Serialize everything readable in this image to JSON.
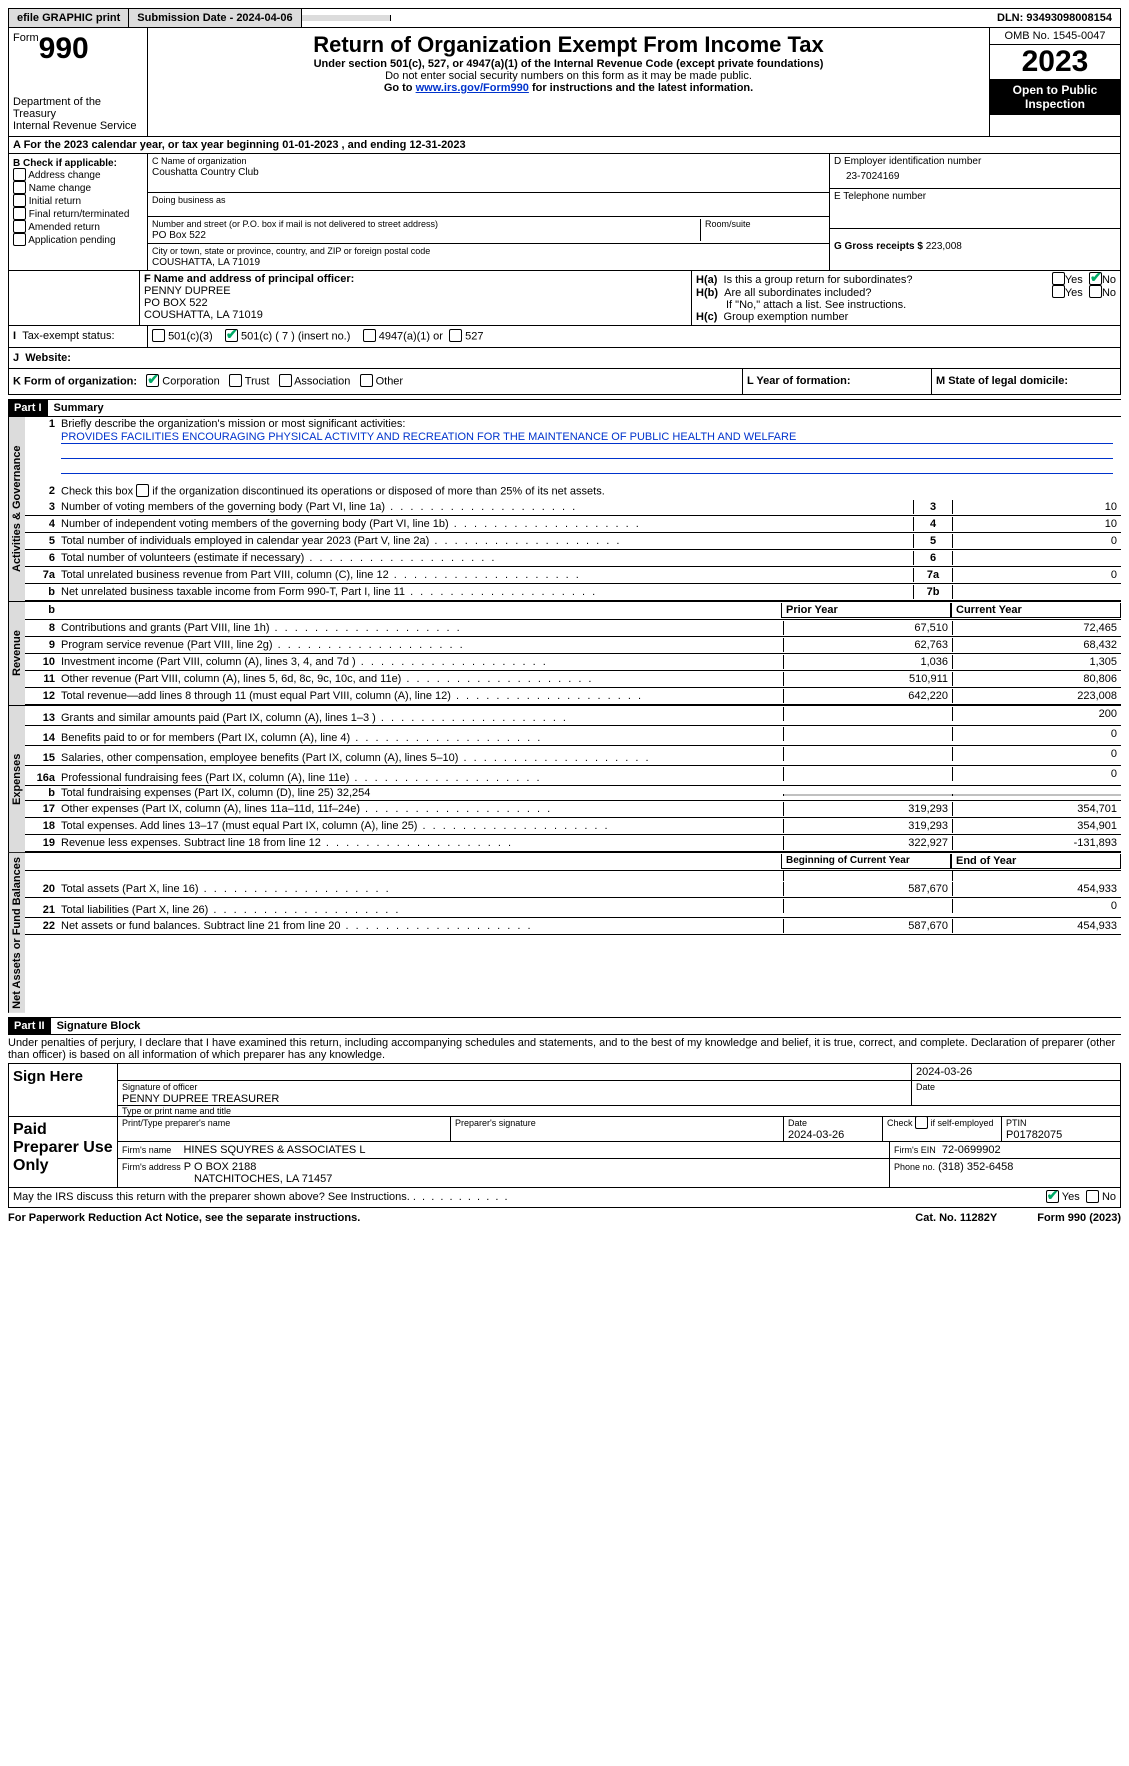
{
  "topbar": {
    "efile": "efile GRAPHIC print",
    "submission": "Submission Date - 2024-04-06",
    "dln": "DLN: 93493098008154"
  },
  "header": {
    "formword": "Form",
    "formno": "990",
    "dept": "Department of the Treasury",
    "irs": "Internal Revenue Service",
    "title": "Return of Organization Exempt From Income Tax",
    "sub1": "Under section 501(c), 527, or 4947(a)(1) of the Internal Revenue Code (except private foundations)",
    "sub2": "Do not enter social security numbers on this form as it may be made public.",
    "sub3a": "Go to ",
    "sub3link": "www.irs.gov/Form990",
    "sub3b": " for instructions and the latest information.",
    "omb": "OMB No. 1545-0047",
    "year": "2023",
    "inspect": "Open to Public Inspection"
  },
  "period": {
    "label_a": "A For the 2023 calendar year, or tax year beginning ",
    "begin": "01-01-2023",
    "label_b": " , and ending ",
    "end": "12-31-2023"
  },
  "blockB": {
    "title": "B Check if applicable:",
    "items": [
      "Address change",
      "Name change",
      "Initial return",
      "Final return/terminated",
      "Amended return",
      "Application pending"
    ]
  },
  "blockC": {
    "name_label": "C Name of organization",
    "name": "Coushatta Country Club",
    "dba_label": "Doing business as",
    "addr_label": "Number and street (or P.O. box if mail is not delivered to street address)",
    "addr": "PO Box 522",
    "room_label": "Room/suite",
    "city_label": "City or town, state or province, country, and ZIP or foreign postal code",
    "city": "COUSHATTA, LA  71019"
  },
  "blockD": {
    "label": "D Employer identification number",
    "value": "23-7024169"
  },
  "blockE": {
    "label": "E Telephone number"
  },
  "blockG": {
    "label": "G Gross receipts $ ",
    "value": "223,008"
  },
  "blockF": {
    "label": "F  Name and address of principal officer:",
    "name": "PENNY DUPREE",
    "addr1": "PO BOX 522",
    "addr2": "COUSHATTA, LA  71019"
  },
  "blockH": {
    "a": "Is this a group return for subordinates?",
    "b": "Are all subordinates included?",
    "note": "If \"No,\" attach a list. See instructions.",
    "c": "Group exemption number",
    "yes": "Yes",
    "no": "No"
  },
  "taxexempt": {
    "label": "Tax-exempt status:",
    "o1": "501(c)(3)",
    "o2": "501(c) ( 7 ) (insert no.)",
    "o3": "4947(a)(1) or",
    "o4": "527"
  },
  "website_label": "Website:",
  "formorg": {
    "label": "K Form of organization:",
    "o1": "Corporation",
    "o2": "Trust",
    "o3": "Association",
    "o4": "Other"
  },
  "yearL": "L Year of formation:",
  "stateM": "M State of legal domicile:",
  "part1": {
    "label": "Part I",
    "title": "Summary"
  },
  "summary": {
    "l1_label": "Briefly describe the organization's mission or most significant activities:",
    "l1_text": "PROVIDES FACILITIES ENCOURAGING PHYSICAL ACTIVITY AND RECREATION FOR THE MAINTENANCE OF PUBLIC HEALTH AND WELFARE",
    "l2": "Check this box      if the organization discontinued its operations or disposed of more than 25% of its net assets.",
    "rows_gov": [
      {
        "n": "3",
        "t": "Number of voting members of the governing body (Part VI, line 1a)",
        "k": "3",
        "v": "10"
      },
      {
        "n": "4",
        "t": "Number of independent voting members of the governing body (Part VI, line 1b)",
        "k": "4",
        "v": "10"
      },
      {
        "n": "5",
        "t": "Total number of individuals employed in calendar year 2023 (Part V, line 2a)",
        "k": "5",
        "v": "0"
      },
      {
        "n": "6",
        "t": "Total number of volunteers (estimate if necessary)",
        "k": "6",
        "v": ""
      },
      {
        "n": "7a",
        "t": "Total unrelated business revenue from Part VIII, column (C), line 12",
        "k": "7a",
        "v": "0"
      },
      {
        "n": "b",
        "t": "Net unrelated business taxable income from Form 990-T, Part I, line 11",
        "k": "7b",
        "v": ""
      }
    ],
    "hdr_prior": "Prior Year",
    "hdr_curr": "Current Year",
    "rows_rev": [
      {
        "n": "8",
        "t": "Contributions and grants (Part VIII, line 1h)",
        "p": "67,510",
        "c": "72,465"
      },
      {
        "n": "9",
        "t": "Program service revenue (Part VIII, line 2g)",
        "p": "62,763",
        "c": "68,432"
      },
      {
        "n": "10",
        "t": "Investment income (Part VIII, column (A), lines 3, 4, and 7d )",
        "p": "1,036",
        "c": "1,305"
      },
      {
        "n": "11",
        "t": "Other revenue (Part VIII, column (A), lines 5, 6d, 8c, 9c, 10c, and 11e)",
        "p": "510,911",
        "c": "80,806"
      },
      {
        "n": "12",
        "t": "Total revenue—add lines 8 through 11 (must equal Part VIII, column (A), line 12)",
        "p": "642,220",
        "c": "223,008"
      }
    ],
    "rows_exp": [
      {
        "n": "13",
        "t": "Grants and similar amounts paid (Part IX, column (A), lines 1–3 )",
        "p": "",
        "c": "200"
      },
      {
        "n": "14",
        "t": "Benefits paid to or for members (Part IX, column (A), line 4)",
        "p": "",
        "c": "0"
      },
      {
        "n": "15",
        "t": "Salaries, other compensation, employee benefits (Part IX, column (A), lines 5–10)",
        "p": "",
        "c": "0"
      },
      {
        "n": "16a",
        "t": "Professional fundraising fees (Part IX, column (A), line 11e)",
        "p": "",
        "c": "0"
      },
      {
        "n": "b",
        "t": "Total fundraising expenses (Part IX, column (D), line 25) 32,254",
        "p": "grey",
        "c": "grey"
      },
      {
        "n": "17",
        "t": "Other expenses (Part IX, column (A), lines 11a–11d, 11f–24e)",
        "p": "319,293",
        "c": "354,701"
      },
      {
        "n": "18",
        "t": "Total expenses. Add lines 13–17 (must equal Part IX, column (A), line 25)",
        "p": "319,293",
        "c": "354,901"
      },
      {
        "n": "19",
        "t": "Revenue less expenses. Subtract line 18 from line 12",
        "p": "322,927",
        "c": "-131,893"
      }
    ],
    "hdr_begin": "Beginning of Current Year",
    "hdr_end": "End of Year",
    "rows_net": [
      {
        "n": "20",
        "t": "Total assets (Part X, line 16)",
        "p": "587,670",
        "c": "454,933"
      },
      {
        "n": "21",
        "t": "Total liabilities (Part X, line 26)",
        "p": "",
        "c": "0"
      },
      {
        "n": "22",
        "t": "Net assets or fund balances. Subtract line 21 from line 20",
        "p": "587,670",
        "c": "454,933"
      }
    ]
  },
  "sidelabels": {
    "gov": "Activities & Governance",
    "rev": "Revenue",
    "exp": "Expenses",
    "net": "Net Assets or Fund Balances"
  },
  "part2": {
    "label": "Part II",
    "title": "Signature Block"
  },
  "penalties": "Under penalties of perjury, I declare that I have examined this return, including accompanying schedules and statements, and to the best of my knowledge and belief, it is true, correct, and complete. Declaration of preparer (other than officer) is based on all information of which preparer has any knowledge.",
  "sign": {
    "here": "Sign Here",
    "sig_label": "Signature of officer",
    "officer": "PENNY DUPREE  TREASURER",
    "name_label": "Type or print name and title",
    "date_label": "Date",
    "date": "2024-03-26"
  },
  "paid": {
    "label": "Paid Preparer Use Only",
    "name_label": "Print/Type preparer's name",
    "sig_label": "Preparer's signature",
    "date_label": "Date",
    "date": "2024-03-26",
    "selfemp": "Check       if self-employed",
    "ptin_label": "PTIN",
    "ptin": "P01782075",
    "firm_label": "Firm's name",
    "firm": "HINES SQUYRES & ASSOCIATES L",
    "ein_label": "Firm's EIN",
    "ein": "72-0699902",
    "addr_label": "Firm's address",
    "addr1": "P O BOX 2188",
    "addr2": "NATCHITOCHES, LA  71457",
    "phone_label": "Phone no.",
    "phone": "(318) 352-6458"
  },
  "discuss": {
    "q": "May the IRS discuss this return with the preparer shown above? See Instructions.",
    "yes": "Yes",
    "no": "No"
  },
  "footer": {
    "paperwork": "For Paperwork Reduction Act Notice, see the separate instructions.",
    "catno": "Cat. No. 11282Y",
    "form": "Form 990 (2023)"
  }
}
